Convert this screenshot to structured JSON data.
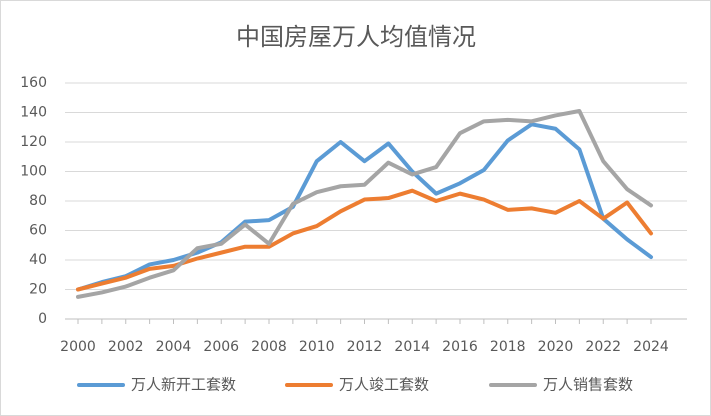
{
  "chart_data": {
    "type": "line",
    "title": "中国房屋万人均值情况",
    "xlabel": "",
    "ylabel": "",
    "x": [
      2000,
      2001,
      2002,
      2003,
      2004,
      2005,
      2006,
      2007,
      2008,
      2009,
      2010,
      2011,
      2012,
      2013,
      2014,
      2015,
      2016,
      2017,
      2018,
      2019,
      2020,
      2021,
      2022,
      2023,
      2024
    ],
    "x_tick_labels": [
      "2000",
      "2002",
      "2004",
      "2006",
      "2008",
      "2010",
      "2012",
      "2014",
      "2016",
      "2018",
      "2020",
      "2022",
      "2024"
    ],
    "y_ticks": [
      0,
      20,
      40,
      60,
      80,
      100,
      120,
      140,
      160
    ],
    "ylim": [
      0,
      160
    ],
    "grid": true,
    "legend_position": "bottom",
    "series": [
      {
        "name": "万人新开工套数",
        "color": "#5b9bd5",
        "values": [
          20,
          25,
          29,
          37,
          40,
          45,
          52,
          66,
          67,
          76,
          107,
          120,
          107,
          119,
          100,
          85,
          92,
          101,
          121,
          132,
          129,
          115,
          68,
          54,
          42
        ]
      },
      {
        "name": "万人竣工套数",
        "color": "#ed7d31",
        "values": [
          20,
          24,
          28,
          34,
          36,
          41,
          45,
          49,
          49,
          58,
          63,
          73,
          81,
          82,
          87,
          80,
          85,
          81,
          74,
          75,
          72,
          80,
          68,
          79,
          58
        ]
      },
      {
        "name": "万人销售套数",
        "color": "#a5a5a5",
        "values": [
          15,
          18,
          22,
          28,
          33,
          48,
          51,
          64,
          51,
          78,
          86,
          90,
          91,
          106,
          98,
          103,
          126,
          134,
          135,
          134,
          138,
          141,
          107,
          88,
          77
        ]
      }
    ]
  }
}
